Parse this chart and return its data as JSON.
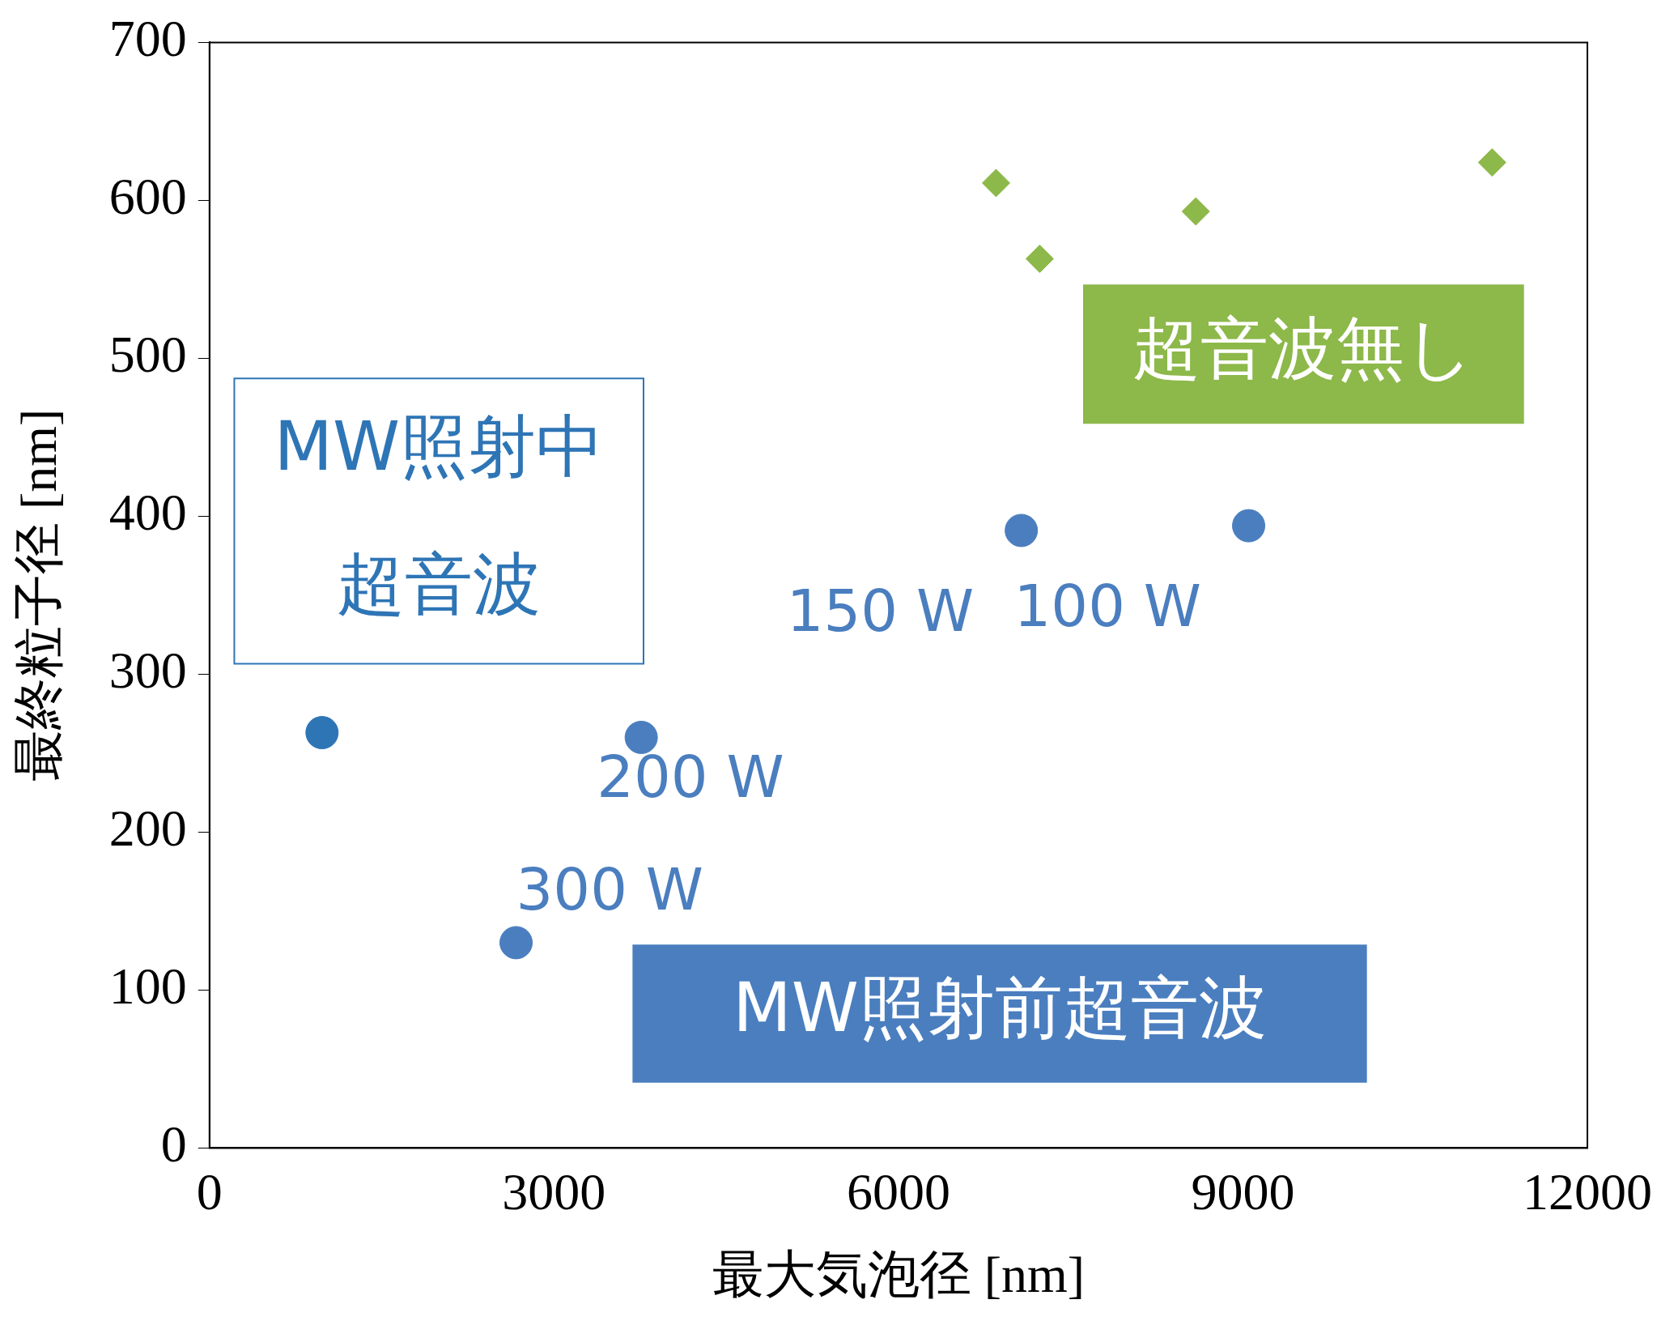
{
  "chart_data": {
    "type": "scatter",
    "xlabel": "最大気泡径 [nm]",
    "ylabel": "最終粒子径 [nm]",
    "xlim": [
      0,
      12000
    ],
    "xticks": [
      0,
      3000,
      6000,
      9000,
      12000
    ],
    "ylim": [
      0,
      700
    ],
    "yticks": [
      0,
      100,
      200,
      300,
      400,
      500,
      600,
      700
    ],
    "grid": false,
    "legend": false,
    "marker": "circle",
    "series": [
      {
        "name": "MW照射中超音波",
        "color": "#2e75b6",
        "x": [
          980
        ],
        "values": [
          263
        ]
      },
      {
        "name": "MW照射前超音波",
        "color": "#4a7ebf",
        "marker": "circle",
        "x": [
          2670,
          3760,
          7070,
          9050
        ],
        "values": [
          130,
          260,
          391,
          394
        ]
      },
      {
        "name": "超音波無し",
        "color": "#8db84a",
        "marker": "diamond",
        "x": [
          6850,
          7230,
          8590,
          11170
        ],
        "values": [
          611,
          563,
          593,
          624
        ]
      }
    ],
    "annotations": [
      {
        "text": "300 W",
        "x": 2670,
        "y": 130
      },
      {
        "text": "200 W",
        "x": 3760,
        "y": 260
      },
      {
        "text": "150 W",
        "x": 7070,
        "y": 391
      },
      {
        "text": "100 W",
        "x": 9050,
        "y": 394
      }
    ]
  }
}
